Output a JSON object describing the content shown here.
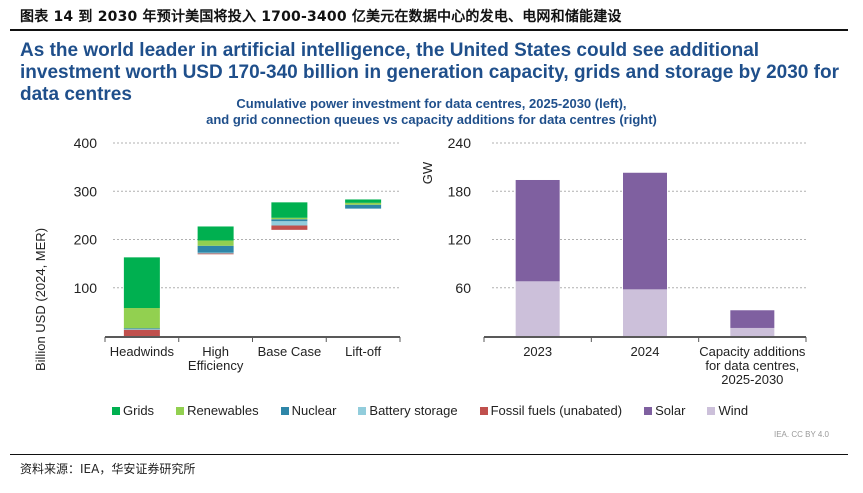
{
  "figure_title": "图表 14 到 2030 年预计美国将投入 1700-3400 亿美元在数据中心的发电、电网和储能建设",
  "headline": "As the world leader in artificial intelligence, the United States could see additional investment worth USD 170-340 billion in generation capacity, grids and storage by 2030 for data centres",
  "subtitle_line1": "Cumulative power investment for data centres, 2025-2030 (left),",
  "subtitle_line2": "and grid connection queues vs capacity additions for data centres (right)",
  "credit": "IEA. CC BY 4.0",
  "source": "资料来源：IEA，华安证券研究所",
  "colors": {
    "Grids": "#00b050",
    "Renewables": "#92d050",
    "Nuclear": "#2e86a8",
    "Battery storage": "#92cddc",
    "Fossil fuels (unabated)": "#c0504d",
    "Solar": "#7f60a0",
    "Wind": "#ccc0da"
  },
  "legend": [
    {
      "label": "Grids",
      "color": "#00b050"
    },
    {
      "label": "Renewables",
      "color": "#92d050"
    },
    {
      "label": "Nuclear",
      "color": "#2e86a8"
    },
    {
      "label": "Battery storage",
      "color": "#92cddc"
    },
    {
      "label": "Fossil fuels (unabated)",
      "color": "#c0504d"
    },
    {
      "label": "Solar",
      "color": "#7f60a0"
    },
    {
      "label": "Wind",
      "color": "#ccc0da"
    }
  ],
  "chart_data": [
    {
      "type": "bar",
      "subtype": "stacked-floating",
      "title": "Cumulative power investment for data centres, 2025-2030",
      "xlabel": "",
      "ylabel": "Billion USD (2024, MER)",
      "ylim": [
        0,
        400
      ],
      "yticks": [
        100,
        200,
        300,
        400
      ],
      "grid": true,
      "categories": [
        "Headwinds",
        "High Efficiency",
        "Base Case",
        "Lift-off"
      ],
      "category_labels": [
        [
          "Headwinds"
        ],
        [
          "High",
          "Efficiency"
        ],
        [
          "Base Case"
        ],
        [
          "Lift-off"
        ]
      ],
      "base": [
        0,
        170,
        220,
        264
      ],
      "series": [
        {
          "name": "Fossil fuels (unabated)",
          "values": [
            13,
            1,
            9,
            0
          ]
        },
        {
          "name": "Battery storage",
          "values": [
            2,
            2,
            9,
            0
          ]
        },
        {
          "name": "Nuclear",
          "values": [
            1,
            14,
            4,
            8
          ]
        },
        {
          "name": "Renewables",
          "values": [
            42,
            11,
            3,
            4
          ]
        },
        {
          "name": "Grids",
          "values": [
            105,
            29,
            32,
            7
          ]
        }
      ],
      "series_extra": [
        {
          "name": "Battery storage (upper)",
          "category": "High Efficiency",
          "note": "battery and nuclear layers visible between fossil and renewables"
        }
      ]
    },
    {
      "type": "bar",
      "subtype": "stacked",
      "title": "Grid connection queues vs capacity additions for data centres",
      "xlabel": "",
      "ylabel": "GW",
      "ylim": [
        0,
        240
      ],
      "yticks": [
        60,
        120,
        180,
        240
      ],
      "grid": true,
      "categories": [
        "2023",
        "2024",
        "Capacity additions for data centres, 2025-2030"
      ],
      "category_labels": [
        [
          "2023"
        ],
        [
          "2024"
        ],
        [
          "Capacity additions",
          "for data centres,",
          "2025-2030"
        ]
      ],
      "series": [
        {
          "name": "Wind",
          "values": [
            68,
            58,
            10
          ]
        },
        {
          "name": "Solar",
          "values": [
            126,
            145,
            22
          ]
        }
      ]
    }
  ]
}
